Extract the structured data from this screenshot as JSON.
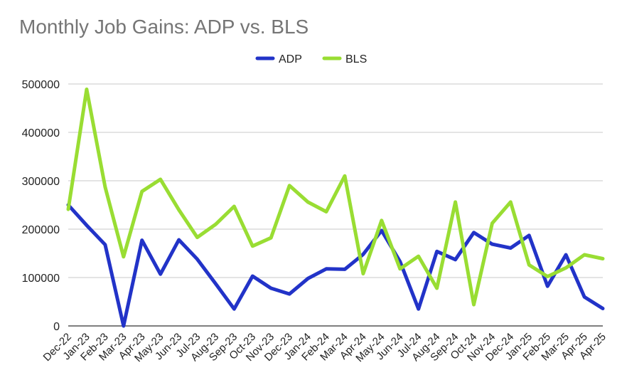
{
  "chart_data": {
    "type": "line",
    "title": "Monthly Job Gains: ADP vs. BLS",
    "xlabel": "",
    "ylabel": "",
    "ylim": [
      0,
      500000
    ],
    "y_ticks": [
      "0",
      "100000",
      "200000",
      "300000",
      "400000",
      "500000"
    ],
    "grid": true,
    "legend_position": "top",
    "categories": [
      "Dec-22",
      "Jan-23",
      "Feb-23",
      "Mar-23",
      "Apr-23",
      "May-23",
      "Jun-23",
      "Jul-23",
      "Aug-23",
      "Sep-23",
      "Oct-23",
      "Nov-23",
      "Dec-23",
      "Jan-24",
      "Feb-24",
      "Mar-24",
      "Apr-24",
      "May-24",
      "Jun-24",
      "Jul-24",
      "Aug-24",
      "Sep-24",
      "Oct-24",
      "Nov-24",
      "Dec-24",
      "Jan-25",
      "Feb-25",
      "Mar-25",
      "Apr-25",
      "Apr-25"
    ],
    "series": [
      {
        "name": "ADP",
        "color": "#2233c8",
        "values": [
          250000,
          208000,
          168000,
          0,
          177000,
          107000,
          178000,
          138000,
          87000,
          35000,
          103000,
          78000,
          66000,
          98000,
          118000,
          117000,
          148000,
          197000,
          133000,
          35000,
          154000,
          137000,
          193000,
          169000,
          161000,
          187000,
          82000,
          147000,
          60000,
          36000
        ]
      },
      {
        "name": "BLS",
        "color": "#99dd33",
        "values": [
          241000,
          489000,
          287000,
          143000,
          278000,
          303000,
          240000,
          183000,
          210000,
          247000,
          165000,
          182000,
          290000,
          256000,
          236000,
          310000,
          108000,
          218000,
          118000,
          144000,
          78000,
          256000,
          44000,
          212000,
          256000,
          126000,
          102000,
          120000,
          147000,
          139000
        ]
      }
    ]
  }
}
